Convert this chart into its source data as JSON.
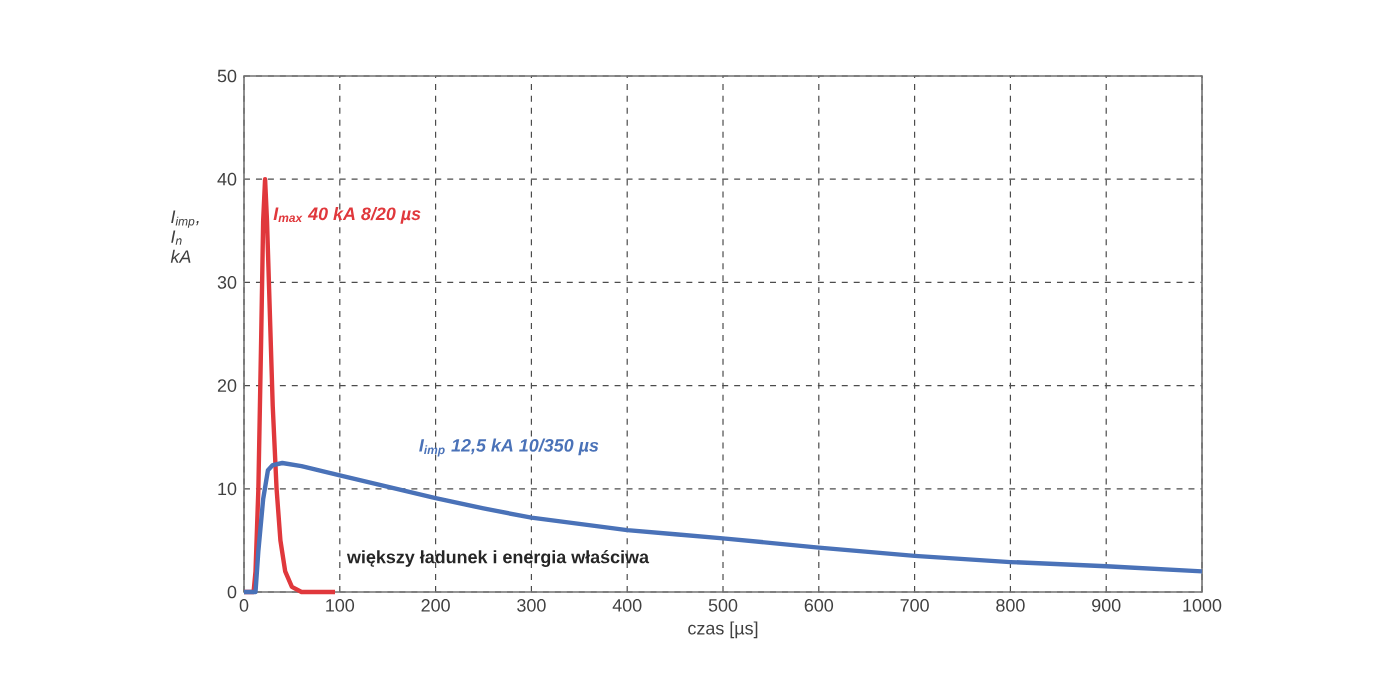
{
  "chart_data": {
    "type": "line",
    "xlabel": "czas [µs]",
    "ylabel": "I$_{imp}$, I$_{n}$ kA",
    "xlim": [
      0,
      1000
    ],
    "ylim": [
      0,
      50
    ],
    "xticks": [
      0,
      100,
      200,
      300,
      400,
      500,
      600,
      700,
      800,
      900,
      1000
    ],
    "yticks": [
      0,
      10,
      20,
      30,
      40,
      50
    ],
    "grid": true,
    "marker": "none",
    "line_style": "solid",
    "series": [
      {
        "name": "I$_{max}$ 40 kA 8/20 µs",
        "color": "#e0383c",
        "x": [
          0,
          10,
          12,
          15,
          18,
          20,
          22,
          24,
          27,
          30,
          34,
          38,
          43,
          50,
          60,
          95
        ],
        "values": [
          0,
          0,
          2,
          10,
          25,
          36,
          40,
          36,
          27,
          18,
          10,
          5,
          2,
          0.5,
          0,
          0
        ]
      },
      {
        "name": "I$_{imp}$ 12,5 kA 10/350 µs",
        "color": "#4a72b8",
        "x": [
          0,
          12,
          15,
          20,
          25,
          30,
          40,
          60,
          100,
          150,
          200,
          250,
          300,
          350,
          400,
          450,
          500,
          600,
          700,
          800,
          900,
          1000
        ],
        "values": [
          0,
          0,
          4,
          9,
          11.8,
          12.3,
          12.5,
          12.2,
          11.3,
          10.2,
          9.1,
          8.1,
          7.2,
          6.6,
          6.0,
          5.6,
          5.2,
          4.3,
          3.5,
          2.9,
          2.5,
          2.0
        ]
      }
    ],
    "annotations": [
      "większy ładunek i energia właściwa"
    ]
  }
}
